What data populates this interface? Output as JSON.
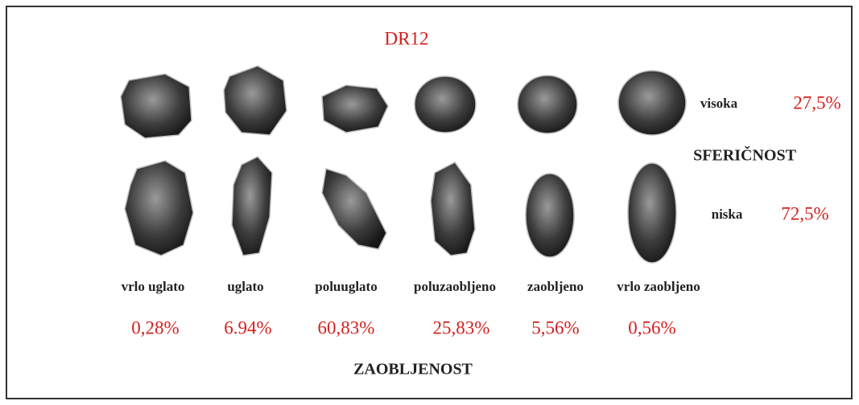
{
  "title": "DR12",
  "sphericity": {
    "label": "SFERIČNOST",
    "classes": [
      {
        "label": "visoka",
        "value": "27,5%"
      },
      {
        "label": "niska",
        "value": "72,5%"
      }
    ]
  },
  "roundness": {
    "label": "ZAOBLJENOST",
    "classes": [
      {
        "label": "vrlo uglato",
        "value": "0,28%"
      },
      {
        "label": "uglato",
        "value": "6.94%"
      },
      {
        "label": "poluuglato",
        "value": "60,83%"
      },
      {
        "label": "poluzaobljeno",
        "value": "25,83%"
      },
      {
        "label": "zaobljeno",
        "value": "5,56%"
      },
      {
        "label": "vrlo zaobljeno",
        "value": "0,56%"
      }
    ]
  }
}
